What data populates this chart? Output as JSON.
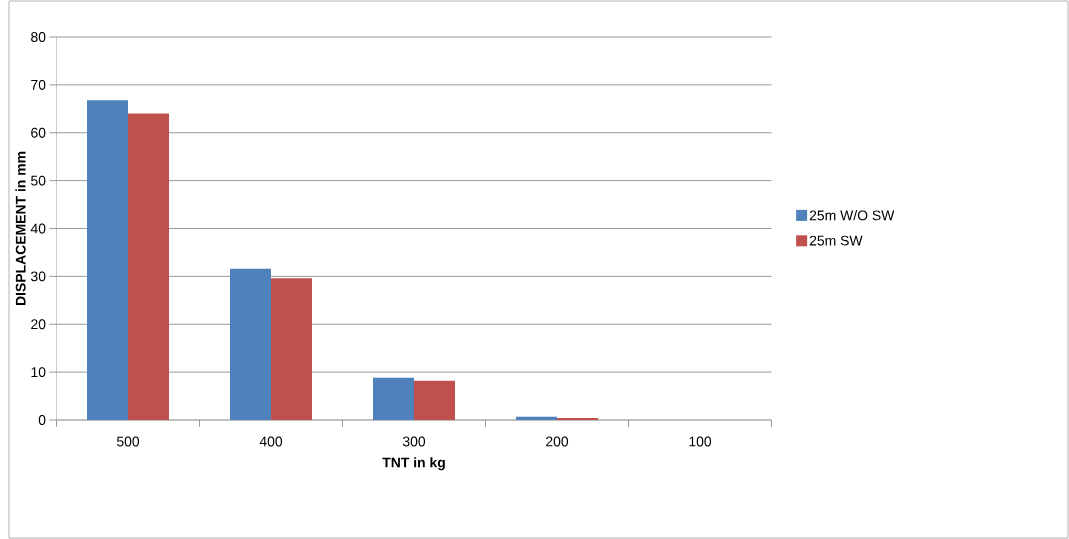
{
  "chart_data": {
    "type": "bar",
    "xlabel": "TNT in kg",
    "ylabel": "DISPLACEMENT in mm",
    "categories": [
      "500",
      "400",
      "300",
      "200",
      "100"
    ],
    "series": [
      {
        "name": "25m W/O SW",
        "color": "#4f81bd",
        "values": [
          66.8,
          31.6,
          8.8,
          0.7,
          0
        ]
      },
      {
        "name": "25m SW",
        "color": "#c0504d",
        "values": [
          64,
          29.6,
          8.2,
          0.4,
          0
        ]
      }
    ],
    "ylim": [
      0,
      80
    ],
    "yticks": [
      0,
      10,
      20,
      30,
      40,
      50,
      60,
      70,
      80
    ],
    "grid": "y",
    "legend": "right"
  }
}
